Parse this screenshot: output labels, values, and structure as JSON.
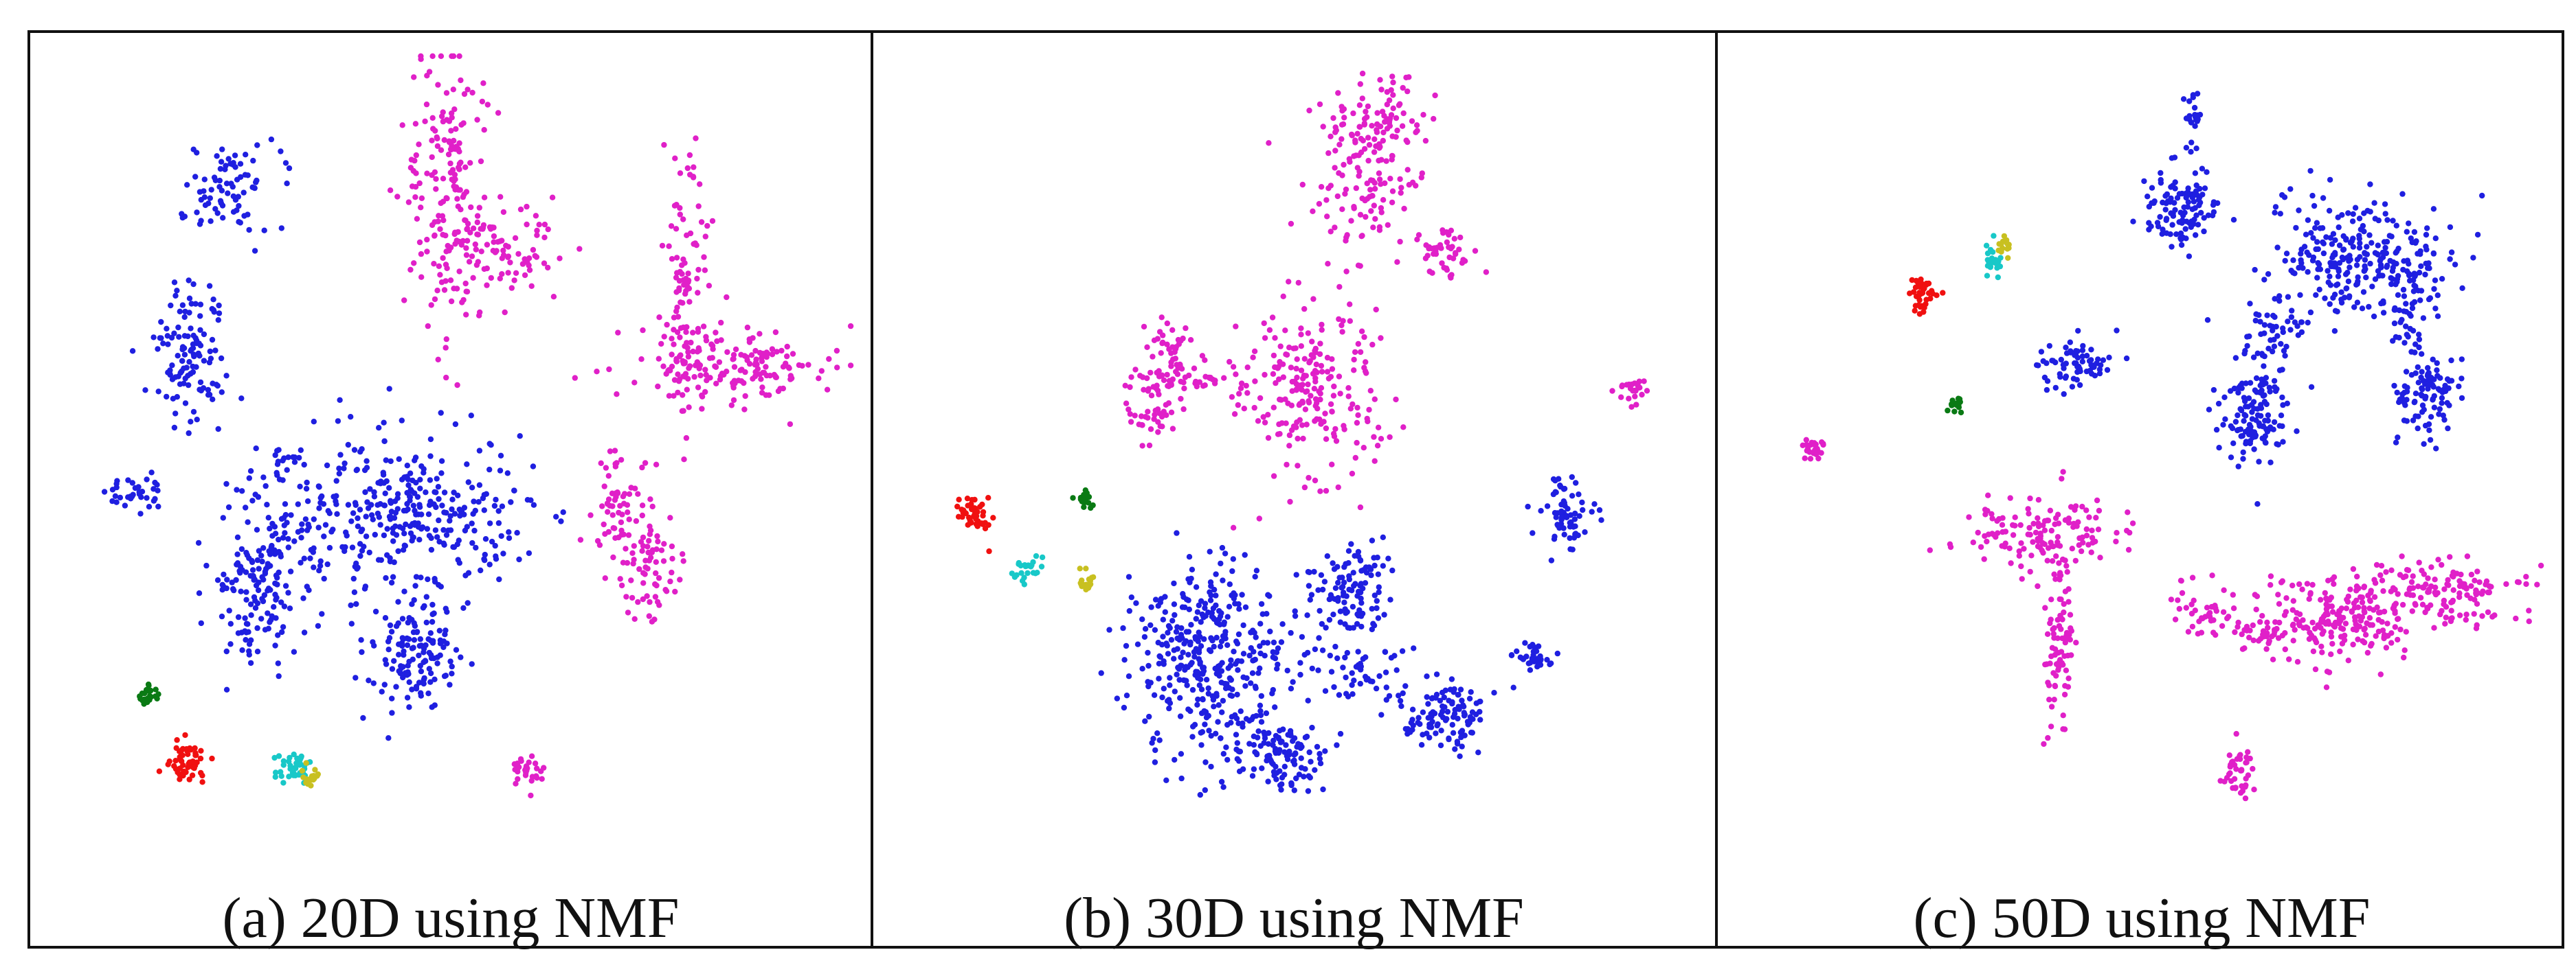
{
  "colors": {
    "blue": "#1f1fe0",
    "magenta": "#e020c8",
    "red": "#f01010",
    "green": "#0a7a14",
    "cyan": "#18c8c8",
    "yellow": "#c8c020",
    "border": "#111111"
  },
  "chart_data": [
    {
      "type": "scatter",
      "title": "(a) 20D using NMF",
      "clusters": [
        {
          "color": "blue",
          "cx": 0.23,
          "cy": 0.17,
          "sx": 0.035,
          "sy": 0.03,
          "n": 80
        },
        {
          "color": "blue",
          "cx": 0.185,
          "cy": 0.38,
          "sx": 0.025,
          "sy": 0.05,
          "n": 120
        },
        {
          "color": "blue",
          "cx": 0.11,
          "cy": 0.55,
          "sx": 0.018,
          "sy": 0.015,
          "n": 35
        },
        {
          "color": "blue",
          "cx": 0.3,
          "cy": 0.58,
          "sx": 0.04,
          "sy": 0.04,
          "n": 60
        },
        {
          "color": "blue",
          "cx": 0.26,
          "cy": 0.67,
          "sx": 0.03,
          "sy": 0.05,
          "n": 140
        },
        {
          "color": "blue",
          "cx": 0.45,
          "cy": 0.57,
          "sx": 0.08,
          "sy": 0.05,
          "n": 330
        },
        {
          "color": "blue",
          "cx": 0.3,
          "cy": 0.505,
          "sx": 0.015,
          "sy": 0.006,
          "n": 12
        },
        {
          "color": "blue",
          "cx": 0.46,
          "cy": 0.75,
          "sx": 0.035,
          "sy": 0.04,
          "n": 140
        },
        {
          "color": "magenta",
          "cx": 0.5,
          "cy": 0.17,
          "sx": 0.03,
          "sy": 0.1,
          "n": 180
        },
        {
          "color": "magenta",
          "cx": 0.56,
          "cy": 0.25,
          "sx": 0.04,
          "sy": 0.03,
          "n": 90
        },
        {
          "color": "magenta",
          "cx": 0.79,
          "cy": 0.28,
          "sx": 0.015,
          "sy": 0.09,
          "n": 100
        },
        {
          "color": "magenta",
          "cx": 0.84,
          "cy": 0.39,
          "sx": 0.07,
          "sy": 0.025,
          "n": 170
        },
        {
          "color": "magenta",
          "cx": 0.71,
          "cy": 0.56,
          "sx": 0.025,
          "sy": 0.035,
          "n": 60
        },
        {
          "color": "magenta",
          "cx": 0.745,
          "cy": 0.645,
          "sx": 0.02,
          "sy": 0.04,
          "n": 70
        },
        {
          "color": "magenta",
          "cx": 0.595,
          "cy": 0.895,
          "sx": 0.01,
          "sy": 0.012,
          "n": 30
        },
        {
          "color": "green",
          "cx": 0.13,
          "cy": 0.8,
          "sx": 0.008,
          "sy": 0.008,
          "n": 25
        },
        {
          "color": "red",
          "cx": 0.18,
          "cy": 0.88,
          "sx": 0.013,
          "sy": 0.012,
          "n": 55
        },
        {
          "color": "cyan",
          "cx": 0.31,
          "cy": 0.885,
          "sx": 0.014,
          "sy": 0.01,
          "n": 40
        },
        {
          "color": "yellow",
          "cx": 0.33,
          "cy": 0.9,
          "sx": 0.008,
          "sy": 0.008,
          "n": 20
        }
      ]
    },
    {
      "type": "scatter",
      "title": "(b) 30D using NMF",
      "clusters": [
        {
          "color": "magenta",
          "cx": 0.58,
          "cy": 0.16,
          "sx": 0.04,
          "sy": 0.05,
          "n": 130
        },
        {
          "color": "magenta",
          "cx": 0.61,
          "cy": 0.09,
          "sx": 0.025,
          "sy": 0.03,
          "n": 60
        },
        {
          "color": "magenta",
          "cx": 0.68,
          "cy": 0.255,
          "sx": 0.018,
          "sy": 0.02,
          "n": 45
        },
        {
          "color": "magenta",
          "cx": 0.34,
          "cy": 0.38,
          "sx": 0.02,
          "sy": 0.03,
          "n": 50
        },
        {
          "color": "magenta",
          "cx": 0.325,
          "cy": 0.44,
          "sx": 0.02,
          "sy": 0.025,
          "n": 50
        },
        {
          "color": "magenta",
          "cx": 0.4,
          "cy": 0.41,
          "sx": 0.035,
          "sy": 0.01,
          "n": 30
        },
        {
          "color": "magenta",
          "cx": 0.52,
          "cy": 0.42,
          "sx": 0.045,
          "sy": 0.06,
          "n": 220
        },
        {
          "color": "magenta",
          "cx": 0.915,
          "cy": 0.42,
          "sx": 0.01,
          "sy": 0.01,
          "n": 25
        },
        {
          "color": "red",
          "cx": 0.105,
          "cy": 0.575,
          "sx": 0.012,
          "sy": 0.012,
          "n": 45
        },
        {
          "color": "green",
          "cx": 0.245,
          "cy": 0.56,
          "sx": 0.007,
          "sy": 0.007,
          "n": 20
        },
        {
          "color": "cyan",
          "cx": 0.17,
          "cy": 0.645,
          "sx": 0.01,
          "sy": 0.008,
          "n": 25
        },
        {
          "color": "yellow",
          "cx": 0.245,
          "cy": 0.66,
          "sx": 0.007,
          "sy": 0.007,
          "n": 20
        },
        {
          "color": "blue",
          "cx": 0.83,
          "cy": 0.575,
          "sx": 0.018,
          "sy": 0.025,
          "n": 70
        },
        {
          "color": "blue",
          "cx": 0.565,
          "cy": 0.665,
          "sx": 0.03,
          "sy": 0.03,
          "n": 110
        },
        {
          "color": "blue",
          "cx": 0.395,
          "cy": 0.76,
          "sx": 0.05,
          "sy": 0.07,
          "n": 380
        },
        {
          "color": "blue",
          "cx": 0.575,
          "cy": 0.77,
          "sx": 0.04,
          "sy": 0.025,
          "n": 60
        },
        {
          "color": "blue",
          "cx": 0.685,
          "cy": 0.82,
          "sx": 0.03,
          "sy": 0.025,
          "n": 110
        },
        {
          "color": "blue",
          "cx": 0.79,
          "cy": 0.75,
          "sx": 0.012,
          "sy": 0.01,
          "n": 35
        },
        {
          "color": "blue",
          "cx": 0.48,
          "cy": 0.87,
          "sx": 0.03,
          "sy": 0.025,
          "n": 110
        }
      ]
    },
    {
      "type": "scatter",
      "title": "(c) 50D using NMF",
      "clusters": [
        {
          "color": "blue",
          "cx": 0.565,
          "cy": 0.09,
          "sx": 0.004,
          "sy": 0.02,
          "n": 25
        },
        {
          "color": "blue",
          "cx": 0.55,
          "cy": 0.2,
          "sx": 0.025,
          "sy": 0.03,
          "n": 110
        },
        {
          "color": "blue",
          "cx": 0.765,
          "cy": 0.26,
          "sx": 0.06,
          "sy": 0.04,
          "n": 260
        },
        {
          "color": "blue",
          "cx": 0.83,
          "cy": 0.32,
          "sx": 0.02,
          "sy": 0.04,
          "n": 60
        },
        {
          "color": "blue",
          "cx": 0.66,
          "cy": 0.35,
          "sx": 0.02,
          "sy": 0.02,
          "n": 45
        },
        {
          "color": "blue",
          "cx": 0.42,
          "cy": 0.39,
          "sx": 0.025,
          "sy": 0.018,
          "n": 70
        },
        {
          "color": "blue",
          "cx": 0.635,
          "cy": 0.45,
          "sx": 0.025,
          "sy": 0.035,
          "n": 130
        },
        {
          "color": "blue",
          "cx": 0.85,
          "cy": 0.43,
          "sx": 0.02,
          "sy": 0.03,
          "n": 100
        },
        {
          "color": "yellow",
          "cx": 0.335,
          "cy": 0.245,
          "sx": 0.005,
          "sy": 0.007,
          "n": 15
        },
        {
          "color": "cyan",
          "cx": 0.32,
          "cy": 0.265,
          "sx": 0.006,
          "sy": 0.012,
          "n": 25
        },
        {
          "color": "red",
          "cx": 0.235,
          "cy": 0.305,
          "sx": 0.01,
          "sy": 0.012,
          "n": 40
        },
        {
          "color": "green",
          "cx": 0.275,
          "cy": 0.44,
          "sx": 0.006,
          "sy": 0.006,
          "n": 15
        },
        {
          "color": "magenta",
          "cx": 0.1,
          "cy": 0.495,
          "sx": 0.008,
          "sy": 0.01,
          "n": 25
        },
        {
          "color": "magenta",
          "cx": 0.375,
          "cy": 0.6,
          "sx": 0.05,
          "sy": 0.025,
          "n": 130
        },
        {
          "color": "magenta",
          "cx": 0.4,
          "cy": 0.72,
          "sx": 0.01,
          "sy": 0.07,
          "n": 90
        },
        {
          "color": "magenta",
          "cx": 0.58,
          "cy": 0.7,
          "sx": 0.025,
          "sy": 0.02,
          "n": 40
        },
        {
          "color": "magenta",
          "cx": 0.75,
          "cy": 0.7,
          "sx": 0.06,
          "sy": 0.03,
          "n": 230
        },
        {
          "color": "magenta",
          "cx": 0.88,
          "cy": 0.67,
          "sx": 0.045,
          "sy": 0.02,
          "n": 120
        },
        {
          "color": "magenta",
          "cx": 0.64,
          "cy": 0.725,
          "sx": 0.03,
          "sy": 0.012,
          "n": 30
        },
        {
          "color": "magenta",
          "cx": 0.62,
          "cy": 0.89,
          "sx": 0.012,
          "sy": 0.02,
          "n": 40
        }
      ]
    }
  ]
}
